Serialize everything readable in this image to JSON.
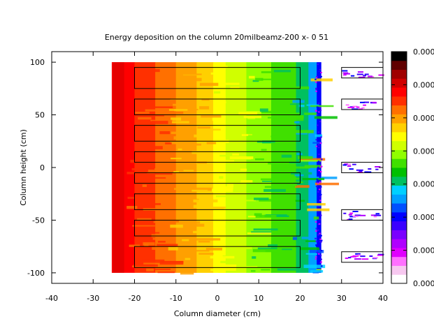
{
  "chart_data": {
    "type": "heatmap",
    "title": "Energy deposition on the column 20milbeamz-200 x- 0 51",
    "xlabel": "Column diameter (cm)",
    "ylabel": "Column height (cm)",
    "xlim": [
      -40,
      40
    ],
    "ylim": [
      -110,
      110
    ],
    "x_ticks": [
      "-40",
      "-30",
      "-20",
      "-10",
      "0",
      "10",
      "20",
      "30",
      "40"
    ],
    "y_ticks": [
      "100",
      "50",
      "0",
      "-50",
      "-100"
    ],
    "grid": false,
    "colorbar": {
      "tick_labels": [
        "0.000",
        "0.000",
        "0.000",
        "0.000",
        "0.000",
        "0.000",
        "0.000",
        "0.000"
      ],
      "colors": [
        "#ffffff",
        "#f7c8f0",
        "#ff70ff",
        "#e000ff",
        "#b000ff",
        "#7a00ff",
        "#3a00ff",
        "#0000ff",
        "#0050ff",
        "#00a0ff",
        "#00d0ff",
        "#00c060",
        "#00c000",
        "#40e000",
        "#90ff00",
        "#d0ff00",
        "#ffff00",
        "#ffd000",
        "#ffa000",
        "#ff7000",
        "#ff3000",
        "#ff0000",
        "#d00000",
        "#a00000",
        "#600000",
        "#000000"
      ]
    },
    "main_region": {
      "x_range": [
        -25,
        25
      ],
      "y_range": [
        -100,
        100
      ],
      "color_bands": [
        {
          "x": [
            -25.5,
            -20
          ],
          "color": "#ff0000"
        },
        {
          "x": [
            -20,
            -15
          ],
          "color": "#ff3000"
        },
        {
          "x": [
            -15,
            -10
          ],
          "color": "#ff7000"
        },
        {
          "x": [
            -10,
            -5
          ],
          "color": "#ffa000"
        },
        {
          "x": [
            -5,
            -1
          ],
          "color": "#ffd000"
        },
        {
          "x": [
            -1,
            2
          ],
          "color": "#ffff00"
        },
        {
          "x": [
            2,
            7
          ],
          "color": "#d0ff00"
        },
        {
          "x": [
            7,
            13
          ],
          "color": "#90ff00"
        },
        {
          "x": [
            13,
            19
          ],
          "color": "#40e000"
        },
        {
          "x": [
            19,
            22
          ],
          "color": "#00c060"
        },
        {
          "x": [
            22,
            24
          ],
          "color": "#00a0ff"
        },
        {
          "x": [
            24,
            25
          ],
          "color": "#0000ff"
        }
      ]
    },
    "inner_boxes": [
      {
        "x": [
          -20,
          20
        ],
        "y": [
          75,
          95
        ]
      },
      {
        "x": [
          -20,
          20
        ],
        "y": [
          50,
          65
        ]
      },
      {
        "x": [
          -20,
          20
        ],
        "y": [
          25,
          40
        ]
      },
      {
        "x": [
          -20,
          20
        ],
        "y": [
          5,
          15
        ]
      },
      {
        "x": [
          -20,
          20
        ],
        "y": [
          -15,
          -5
        ]
      },
      {
        "x": [
          -20,
          20
        ],
        "y": [
          -40,
          -25
        ]
      },
      {
        "x": [
          -20,
          20
        ],
        "y": [
          -65,
          -50
        ]
      },
      {
        "x": [
          -20,
          20
        ],
        "y": [
          -95,
          -75
        ]
      }
    ],
    "side_boxes": [
      {
        "x": [
          30,
          40
        ],
        "y": [
          85,
          95
        ]
      },
      {
        "x": [
          30,
          40
        ],
        "y": [
          55,
          65
        ]
      },
      {
        "x": [
          30,
          40
        ],
        "y": [
          -5,
          5
        ]
      },
      {
        "x": [
          30,
          40
        ],
        "y": [
          -50,
          -40
        ]
      },
      {
        "x": [
          30,
          40
        ],
        "y": [
          -90,
          -80
        ]
      }
    ]
  }
}
